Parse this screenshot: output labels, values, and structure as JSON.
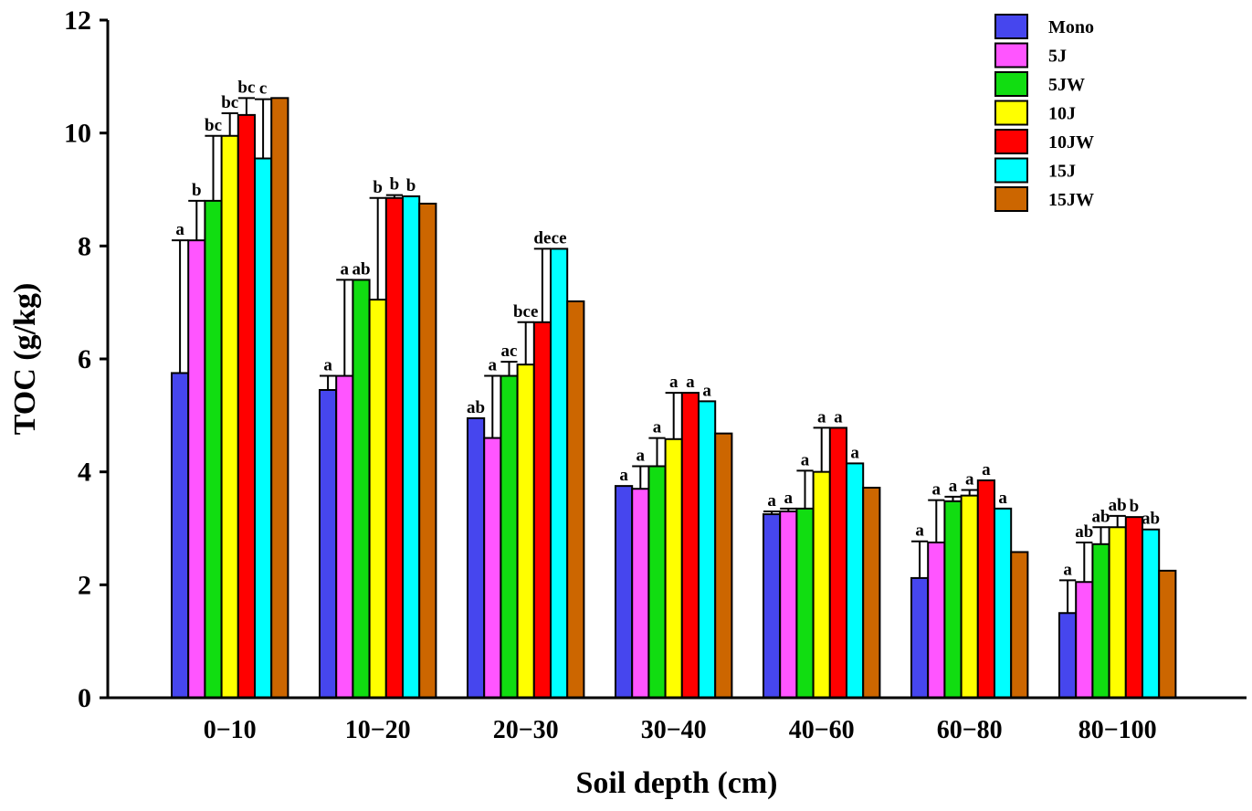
{
  "chart_data": {
    "type": "bar",
    "title": "",
    "xlabel": "Soil depth (cm)",
    "ylabel": "TOC (g/kg)",
    "ylim": [
      0,
      12
    ],
    "yticks": [
      "0",
      "2",
      "4",
      "6",
      "8",
      "10",
      "12"
    ],
    "categories": [
      "0−10",
      "10−20",
      "20−30",
      "30−40",
      "40−60",
      "60−80",
      "80−100"
    ],
    "legend_position": "top-right",
    "series": [
      {
        "name": "Mono",
        "color": "#4646ee",
        "values": [
          5.75,
          5.45,
          4.95,
          3.75,
          3.25,
          2.12,
          1.5
        ],
        "errors": [
          2.35,
          0.25,
          0.0,
          0.0,
          0.05,
          0.65,
          0.58
        ],
        "labels": [
          "a",
          "a",
          "ab",
          "a",
          "a",
          "a",
          "a"
        ]
      },
      {
        "name": "5J",
        "color": "#ff55ff",
        "values": [
          8.1,
          5.7,
          4.6,
          3.7,
          3.3,
          2.75,
          2.05
        ],
        "errors": [
          0.7,
          1.7,
          1.1,
          0.4,
          0.05,
          0.75,
          0.7
        ],
        "labels": [
          "b",
          "a",
          "a",
          "a",
          "a",
          "a",
          "ab"
        ]
      },
      {
        "name": "5JW",
        "color": "#11dd11",
        "values": [
          8.8,
          7.4,
          5.7,
          4.1,
          3.35,
          3.48,
          2.72
        ],
        "errors": [
          1.15,
          0.0,
          0.25,
          0.5,
          0.67,
          0.08,
          0.3
        ],
        "labels": [
          "bc",
          "ab",
          "ac",
          "a",
          "a",
          "a",
          "ab"
        ]
      },
      {
        "name": "10J",
        "color": "#ffff00",
        "values": [
          9.95,
          7.05,
          5.9,
          4.58,
          4.0,
          3.58,
          3.02
        ],
        "errors": [
          0.4,
          1.8,
          0.75,
          0.82,
          0.78,
          0.1,
          0.2
        ],
        "labels": [
          "bc",
          "b",
          "bce",
          "a",
          "a",
          "a",
          "ab"
        ]
      },
      {
        "name": "10JW",
        "color": "#ff0000",
        "values": [
          10.32,
          8.85,
          6.65,
          5.4,
          4.78,
          3.85,
          3.2
        ],
        "errors": [
          0.3,
          0.05,
          1.3,
          0.0,
          0.0,
          0.0,
          0.0
        ],
        "labels": [
          "bc",
          "b",
          "de",
          "a",
          "a",
          "a",
          "b"
        ]
      },
      {
        "name": "15J",
        "color": "#00ffff",
        "values": [
          9.55,
          8.88,
          7.95,
          5.25,
          4.15,
          3.35,
          2.98
        ],
        "errors": [
          1.05,
          0.0,
          0.0,
          0.0,
          0.0,
          0.0,
          0.0
        ],
        "labels": [
          "c",
          "b",
          "ce",
          "a",
          "a",
          "a",
          "ab"
        ]
      },
      {
        "name": "15JW",
        "color": "#cc6600",
        "values": [
          10.62,
          8.75,
          7.02,
          4.68,
          3.72,
          2.58,
          2.25
        ],
        "errors": [
          0.0,
          0.0,
          0.0,
          0.0,
          0.0,
          0.0,
          0.0
        ],
        "labels": [
          "",
          "",
          "",
          "",
          "",
          "",
          ""
        ]
      }
    ]
  }
}
